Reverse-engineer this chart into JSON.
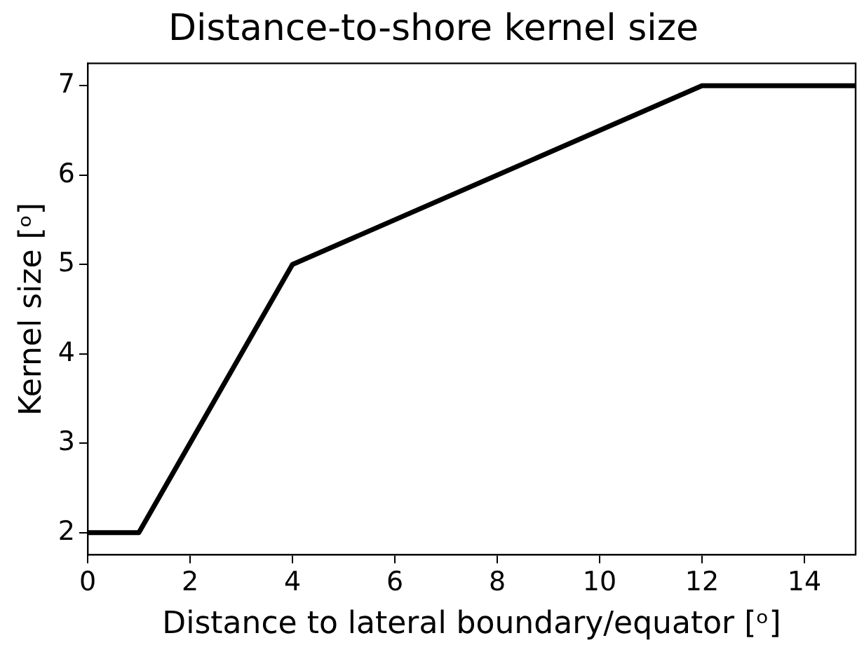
{
  "chart_data": {
    "type": "line",
    "title": "Distance-to-shore kernel size",
    "xlabel": "Distance to lateral boundary/equator [ᵒ]",
    "ylabel": "Kernel size [ᵒ]",
    "x": [
      0,
      1,
      4,
      12,
      15
    ],
    "series": [
      {
        "color": "#000000",
        "values": [
          2,
          2,
          5,
          7,
          7
        ]
      }
    ],
    "xlim": [
      0,
      15
    ],
    "xticks": [
      0,
      2,
      4,
      6,
      8,
      10,
      12,
      14
    ],
    "ylim": [
      1.75,
      7.25
    ],
    "yticks": [
      2,
      3,
      4,
      5,
      6,
      7
    ],
    "grid": false,
    "legend": false,
    "marker": "none",
    "line_style": "solid"
  }
}
